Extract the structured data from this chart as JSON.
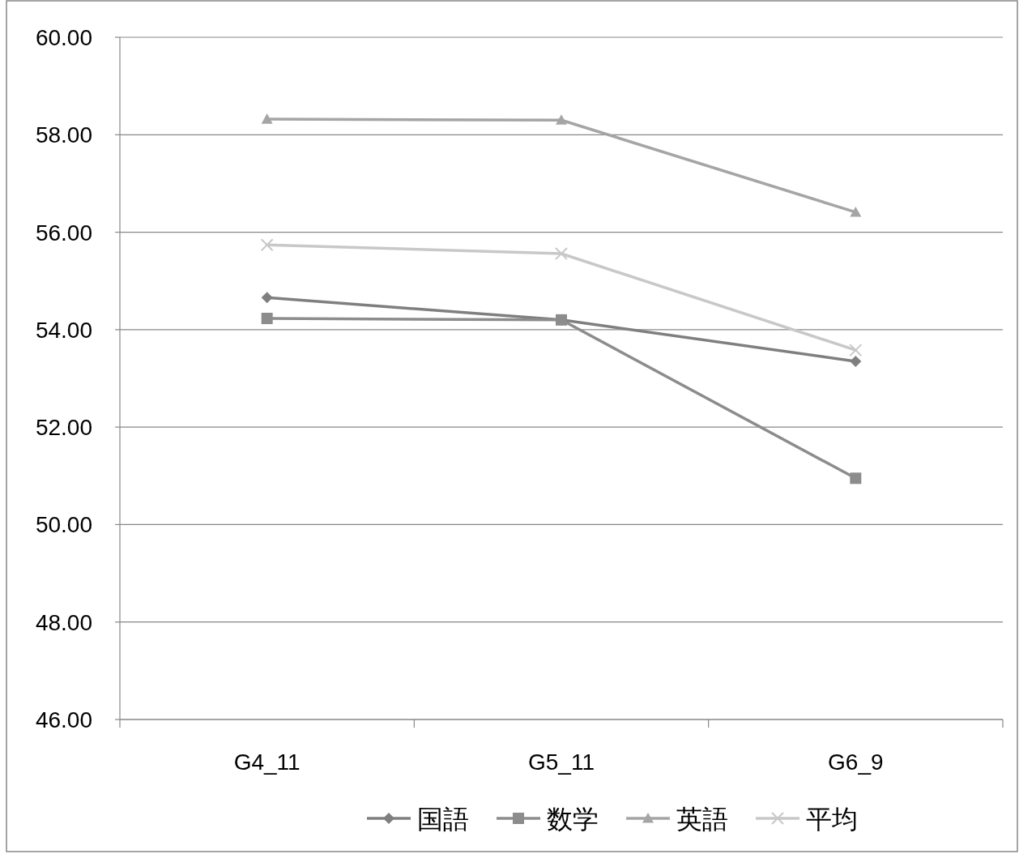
{
  "chart_data": {
    "type": "line",
    "categories": [
      "G4_11",
      "G5_11",
      "G6_9"
    ],
    "series": [
      {
        "name": "国語",
        "color": "#7f7f7f",
        "marker": "diamond",
        "values": [
          54.66,
          54.2,
          53.35
        ]
      },
      {
        "name": "数学",
        "color": "#8c8c8c",
        "marker": "square",
        "values": [
          54.23,
          54.2,
          50.95
        ]
      },
      {
        "name": "英語",
        "color": "#a5a5a5",
        "marker": "triangle",
        "values": [
          58.32,
          58.3,
          56.41
        ]
      },
      {
        "name": "平均",
        "color": "#c8c8c8",
        "marker": "cross",
        "values": [
          55.74,
          55.56,
          53.58
        ]
      }
    ],
    "ylim": [
      46,
      60
    ],
    "yticks": [
      {
        "value": 46,
        "label": "46.00"
      },
      {
        "value": 48,
        "label": "48.00"
      },
      {
        "value": 50,
        "label": "50.00"
      },
      {
        "value": 52,
        "label": "52.00"
      },
      {
        "value": 54,
        "label": "54.00"
      },
      {
        "value": 56,
        "label": "56.00"
      },
      {
        "value": 58,
        "label": "58.00"
      },
      {
        "value": 60,
        "label": "60.00"
      }
    ],
    "grid": "y",
    "legend": "bottom",
    "line_style": "solid"
  }
}
